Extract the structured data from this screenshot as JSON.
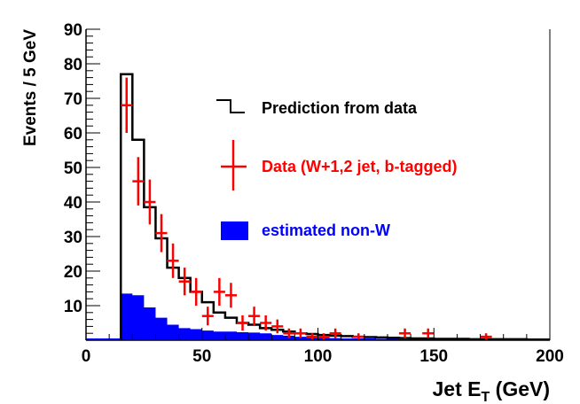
{
  "chart_data": {
    "type": "bar",
    "xlabel": "Jet E",
    "xlabel_sub": "T",
    "xlabel_unit": " (GeV)",
    "ylabel": "Events / 5 GeV",
    "xlim": [
      0,
      200
    ],
    "ylim": [
      0,
      90
    ],
    "xticks": [
      0,
      50,
      100,
      150,
      200
    ],
    "yticks": [
      10,
      20,
      30,
      40,
      50,
      60,
      70,
      80,
      90
    ],
    "bin_width": 5,
    "bin_start": 15,
    "grid": false,
    "legend_placement": "center-right",
    "series": [
      {
        "name": "Prediction from data",
        "kind": "step",
        "color": "#000000",
        "values": [
          77,
          58,
          38.5,
          29.5,
          21,
          18,
          14,
          11,
          8,
          6.5,
          5,
          4.5,
          3.5,
          3,
          2.5,
          2,
          1.8,
          1.5,
          1.3,
          1.2,
          1,
          0.9,
          0.8,
          0.7,
          0.6,
          0.5,
          0.5,
          0.4,
          0.4,
          0.4,
          0.3,
          0.3,
          0.3,
          0.3,
          0.3,
          0.2,
          0.2
        ]
      },
      {
        "name": "Data (W+1,2 jet,  b-tagged)",
        "kind": "points",
        "color": "#ff0000",
        "points": [
          [
            17.5,
            68,
            8
          ],
          [
            22.5,
            46,
            7
          ],
          [
            27.5,
            40,
            6.5
          ],
          [
            32.5,
            31,
            5.5
          ],
          [
            37.5,
            23,
            5
          ],
          [
            42.5,
            17,
            4
          ],
          [
            47.5,
            14,
            4
          ],
          [
            52.5,
            7,
            2.7
          ],
          [
            57.5,
            14,
            4
          ],
          [
            62.5,
            13,
            3.6
          ],
          [
            67.5,
            5,
            2.2
          ],
          [
            72.5,
            7,
            2.7
          ],
          [
            77.5,
            5,
            2.2
          ],
          [
            82.5,
            4,
            2
          ],
          [
            87.5,
            2,
            1.4
          ],
          [
            92.5,
            2,
            1.4
          ],
          [
            97.5,
            1,
            1
          ],
          [
            102.5,
            1,
            1
          ],
          [
            107.5,
            2,
            1.4
          ],
          [
            117.5,
            1,
            1
          ],
          [
            137.5,
            2,
            1.4
          ],
          [
            147.5,
            2,
            1.4
          ],
          [
            172.5,
            1,
            1
          ]
        ]
      },
      {
        "name": "estimated non-W",
        "kind": "filled",
        "color": "#0000ff",
        "values": [
          13.5,
          13,
          9.5,
          6.5,
          4.5,
          3.5,
          3.2,
          2.8,
          2.5,
          2.5,
          2.3,
          2.2,
          2,
          1.5,
          1.3,
          1,
          0.9,
          0.7,
          0.6,
          0.5,
          0.5,
          0.5,
          0.4,
          0.4,
          0.3,
          0.3,
          0.3,
          0.3,
          0.3,
          0.3,
          0.3,
          0.3,
          0.3,
          0.3,
          0.3,
          0.3,
          0.3
        ],
        "underflow": 0.5
      }
    ]
  }
}
